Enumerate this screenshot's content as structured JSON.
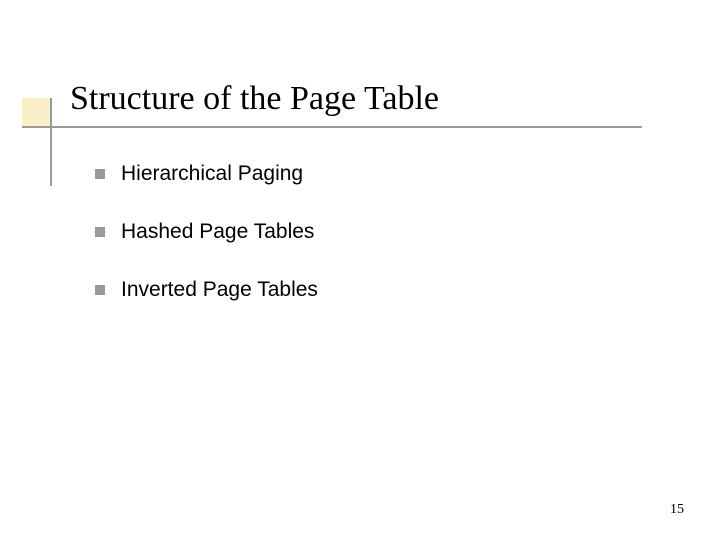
{
  "slide": {
    "title": "Structure of the Page Table",
    "bullets": [
      {
        "label": "Hierarchical Paging"
      },
      {
        "label": "Hashed Page Tables"
      },
      {
        "label": "Inverted Page Tables"
      }
    ],
    "page_number": "15"
  },
  "style": {
    "accent_block_color": "#faf0c8",
    "accent_line_color": "#9a9a9a",
    "bullet_color": "#9a9a9a",
    "title_color": "#000000",
    "title_fontsize": 34,
    "bullet_fontsize": 21,
    "background_color": "#ffffff",
    "page_number_fontsize": 14
  }
}
